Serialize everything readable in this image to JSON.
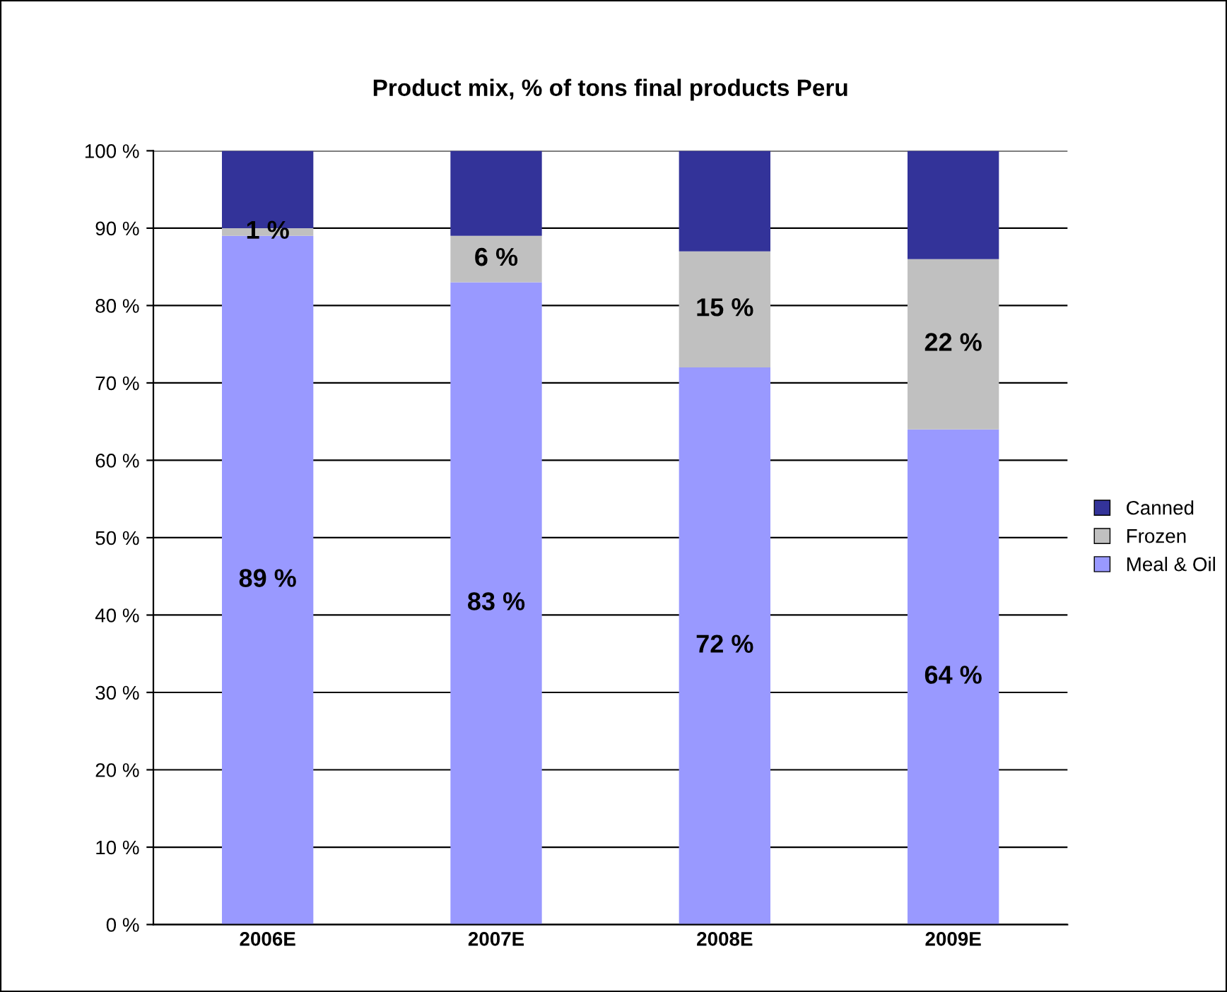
{
  "chart_data": {
    "type": "bar",
    "title": "Product mix, % of tons final products Peru",
    "categories": [
      "2006E",
      "2007E",
      "2008E",
      "2009E"
    ],
    "stacked": true,
    "series": [
      {
        "name": "Meal & Oil",
        "color": "#9999ff",
        "values": [
          89,
          83,
          72,
          64
        ],
        "value_labels": [
          "89 %",
          "83 %",
          "72 %",
          "64 %"
        ]
      },
      {
        "name": "Frozen",
        "color": "#c0c0c0",
        "values": [
          1,
          6,
          15,
          22
        ],
        "value_labels": [
          "1 %",
          "6 %",
          "15 %",
          "22 %"
        ]
      },
      {
        "name": "Canned",
        "color": "#333399",
        "values": [
          10,
          11,
          13,
          14
        ]
      }
    ],
    "ylim": [
      0,
      100
    ],
    "yticks": [
      {
        "value": 0,
        "label": "0 %"
      },
      {
        "value": 10,
        "label": "10 %"
      },
      {
        "value": 20,
        "label": "20 %"
      },
      {
        "value": 30,
        "label": "30 %"
      },
      {
        "value": 40,
        "label": "40 %"
      },
      {
        "value": 50,
        "label": "50 %"
      },
      {
        "value": 60,
        "label": "60 %"
      },
      {
        "value": 70,
        "label": "70 %"
      },
      {
        "value": 80,
        "label": "80 %"
      },
      {
        "value": 90,
        "label": "90 %"
      },
      {
        "value": 100,
        "label": "100 %"
      }
    ],
    "grid": "y",
    "legend": "right"
  }
}
